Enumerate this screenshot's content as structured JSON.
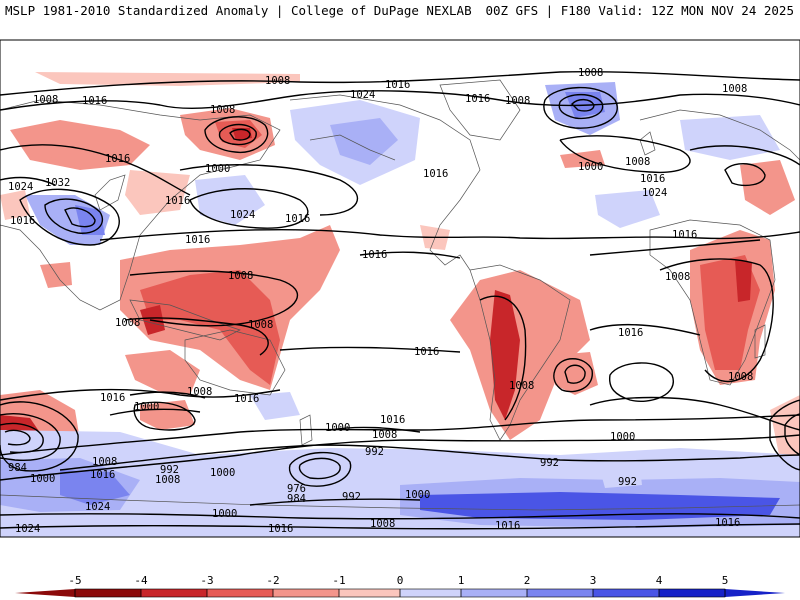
{
  "header": {
    "title_left": "MSLP 1981-2010 Standardized Anomaly | College of DuPage NEXLAB",
    "title_right": "00Z GFS | F180 Valid: 12Z MON NOV 24 2025"
  },
  "colors": {
    "neg5": "#8b0a0a",
    "neg4": "#c8262a",
    "neg3": "#e65b55",
    "neg2": "#f3958b",
    "neg1": "#fbc6bd",
    "zero": "#ffffff",
    "pos1": "#cfd3fb",
    "pos2": "#a9b0f6",
    "pos3": "#7a84ef",
    "pos4": "#4a55e6",
    "pos5": "#1622c8"
  },
  "colorbar": {
    "ticks": [
      "-5",
      "-4",
      "-3",
      "-2",
      "-1",
      "0",
      "1",
      "2",
      "3",
      "4",
      "5"
    ]
  },
  "isobar_labels": [
    {
      "text": "1008",
      "id": "l01"
    },
    {
      "text": "1016",
      "id": "l02"
    },
    {
      "text": "1024",
      "id": "l03"
    },
    {
      "text": "1016",
      "id": "l04"
    },
    {
      "text": "1008",
      "id": "l05"
    },
    {
      "text": "1008",
      "id": "l06"
    },
    {
      "text": "1016",
      "id": "l07"
    },
    {
      "text": "1008",
      "id": "l08"
    },
    {
      "text": "1008",
      "id": "l09"
    },
    {
      "text": "1016",
      "id": "l10"
    },
    {
      "text": "1000",
      "id": "l11"
    },
    {
      "text": "1024",
      "id": "l12"
    },
    {
      "text": "1032",
      "id": "l13"
    },
    {
      "text": "1016",
      "id": "l14"
    },
    {
      "text": "1016",
      "id": "l15"
    },
    {
      "text": "1024",
      "id": "l16"
    },
    {
      "text": "1016",
      "id": "l17"
    },
    {
      "text": "1016",
      "id": "l18"
    },
    {
      "text": "1016",
      "id": "l19"
    },
    {
      "text": "1016",
      "id": "l20"
    },
    {
      "text": "1008",
      "id": "l21"
    },
    {
      "text": "1008",
      "id": "l22"
    },
    {
      "text": "1008",
      "id": "l23"
    },
    {
      "text": "1016",
      "id": "l24"
    },
    {
      "text": "1016",
      "id": "l25"
    },
    {
      "text": "1016",
      "id": "l26"
    },
    {
      "text": "1000",
      "id": "l27"
    },
    {
      "text": "1008",
      "id": "l28"
    },
    {
      "text": "1016",
      "id": "l29"
    },
    {
      "text": "1000",
      "id": "l30"
    },
    {
      "text": "1008",
      "id": "l31"
    },
    {
      "text": "1000",
      "id": "l32"
    },
    {
      "text": "992",
      "id": "l33"
    },
    {
      "text": "1008",
      "id": "l34"
    },
    {
      "text": "1000",
      "id": "l35"
    },
    {
      "text": "992",
      "id": "l36"
    },
    {
      "text": "1008",
      "id": "l37"
    },
    {
      "text": "976",
      "id": "l38"
    },
    {
      "text": "984",
      "id": "l39"
    },
    {
      "text": "992",
      "id": "l40"
    },
    {
      "text": "1000",
      "id": "l41"
    },
    {
      "text": "992",
      "id": "l42"
    },
    {
      "text": "1008",
      "id": "l43"
    },
    {
      "text": "992",
      "id": "l44"
    },
    {
      "text": "1016",
      "id": "l45"
    },
    {
      "text": "1008",
      "id": "l46"
    },
    {
      "text": "1016",
      "id": "l47"
    },
    {
      "text": "1024",
      "id": "l48"
    },
    {
      "text": "1000",
      "id": "l49"
    },
    {
      "text": "1024",
      "id": "l50"
    },
    {
      "text": "1016",
      "id": "l51"
    },
    {
      "text": "984",
      "id": "l52"
    },
    {
      "text": "1000",
      "id": "l53"
    },
    {
      "text": "1008",
      "id": "l54"
    },
    {
      "text": "1016",
      "id": "l55"
    },
    {
      "text": "1024",
      "id": "l56"
    },
    {
      "text": "1000",
      "id": "l57"
    },
    {
      "text": "1016",
      "id": "l58"
    },
    {
      "text": "1008",
      "id": "l59"
    },
    {
      "text": "1016",
      "id": "l60"
    },
    {
      "text": "1008",
      "id": "l61"
    },
    {
      "text": "1016",
      "id": "l62"
    },
    {
      "text": "1008",
      "id": "l63"
    }
  ]
}
